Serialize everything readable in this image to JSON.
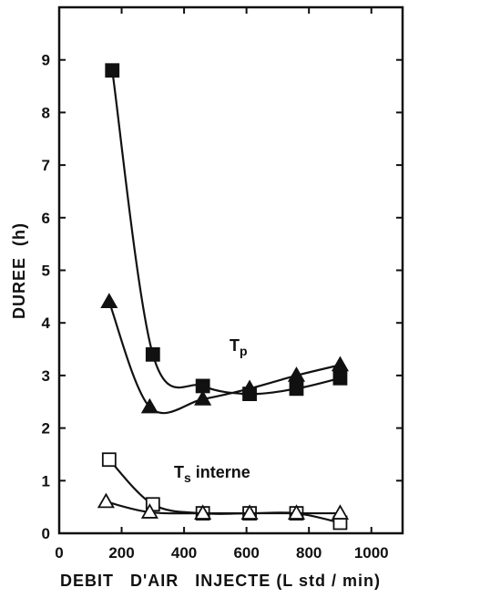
{
  "chart_data": {
    "type": "line",
    "xlabel": "DEBIT   D'AIR   INJECTE",
    "xunit": "(L std / min)",
    "ylabel": "DUREE",
    "yunit": "(h)",
    "xlim": [
      0,
      1100
    ],
    "ylim": [
      0,
      10
    ],
    "xticks": [
      0,
      200,
      400,
      600,
      800,
      1000
    ],
    "yticks": [
      0,
      1,
      2,
      3,
      4,
      5,
      6,
      7,
      8,
      9
    ],
    "grid": false,
    "annotations": {
      "tp_main": "T",
      "tp_sub": "p",
      "ts_main": "T",
      "ts_sub": "s",
      "ts_rest": " interne"
    },
    "series": [
      {
        "marker": "square-filled",
        "x": [
          170,
          300,
          460,
          610,
          760,
          900
        ],
        "y": [
          8.8,
          3.4,
          2.8,
          2.65,
          2.75,
          2.95
        ]
      },
      {
        "marker": "triangle-filled",
        "x": [
          160,
          290,
          460,
          610,
          760,
          900
        ],
        "y": [
          4.4,
          2.4,
          2.55,
          2.75,
          3.0,
          3.2
        ]
      },
      {
        "marker": "square-open",
        "x": [
          160,
          300,
          460,
          610,
          760,
          900
        ],
        "y": [
          1.4,
          0.55,
          0.38,
          0.38,
          0.38,
          0.2
        ]
      },
      {
        "marker": "triangle-open",
        "x": [
          150,
          290,
          460,
          610,
          760,
          900
        ],
        "y": [
          0.6,
          0.4,
          0.38,
          0.38,
          0.38,
          0.38
        ]
      }
    ]
  }
}
